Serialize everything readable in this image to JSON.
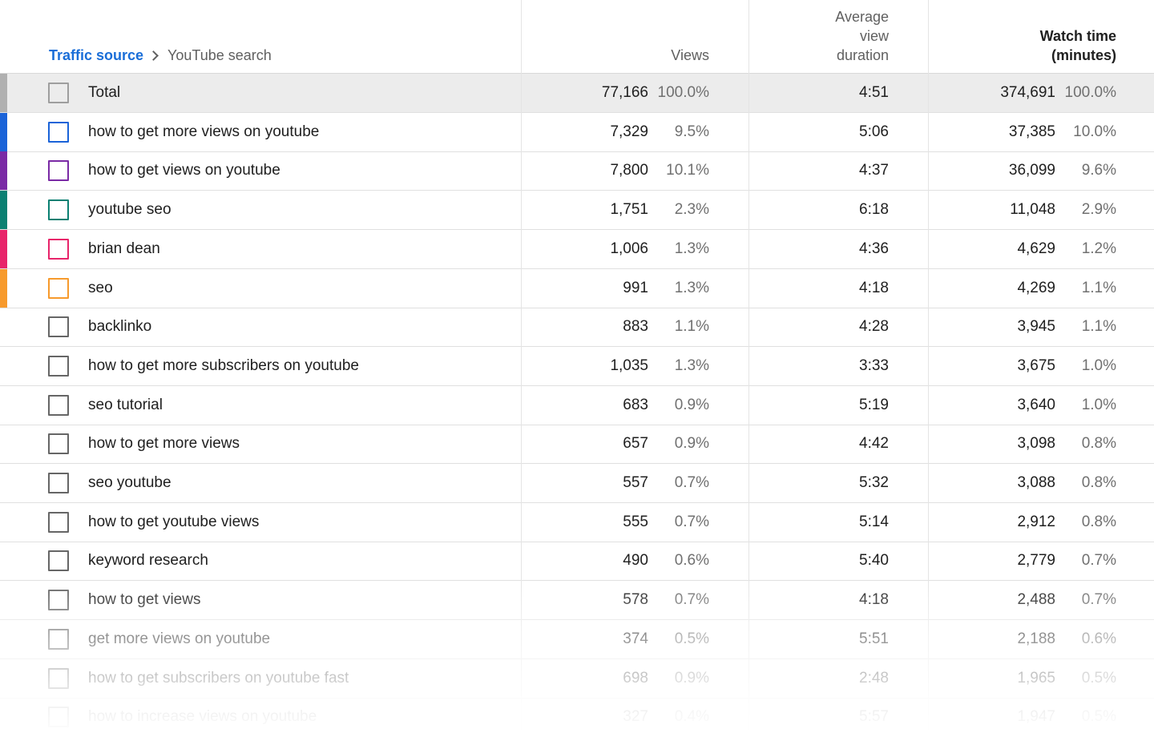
{
  "breadcrumb": {
    "link": "Traffic source",
    "current": "YouTube search"
  },
  "columns": {
    "views": "Views",
    "avg_view_duration": [
      "Average",
      "view",
      "duration"
    ],
    "watch_time": [
      "Watch time",
      "(minutes)"
    ]
  },
  "rows": [
    {
      "label": "Total",
      "views": "77,166",
      "views_pct": "100.0%",
      "avd": "4:51",
      "watch": "374,691",
      "watch_pct": "100.0%",
      "color": "#b0b0b0",
      "checkbox_color": "#9e9e9e",
      "total": true
    },
    {
      "label": "how to get more views on youtube",
      "views": "7,329",
      "views_pct": "9.5%",
      "avd": "5:06",
      "watch": "37,385",
      "watch_pct": "10.0%",
      "color": "#1a63d8"
    },
    {
      "label": "how to get views on youtube",
      "views": "7,800",
      "views_pct": "10.1%",
      "avd": "4:37",
      "watch": "36,099",
      "watch_pct": "9.6%",
      "color": "#7a2aa5"
    },
    {
      "label": "youtube seo",
      "views": "1,751",
      "views_pct": "2.3%",
      "avd": "6:18",
      "watch": "11,048",
      "watch_pct": "2.9%",
      "color": "#0b8072"
    },
    {
      "label": "brian dean",
      "views": "1,006",
      "views_pct": "1.3%",
      "avd": "4:36",
      "watch": "4,629",
      "watch_pct": "1.2%",
      "color": "#e8246a"
    },
    {
      "label": "seo",
      "views": "991",
      "views_pct": "1.3%",
      "avd": "4:18",
      "watch": "4,269",
      "watch_pct": "1.1%",
      "color": "#f79a2c"
    },
    {
      "label": "backlinko",
      "views": "883",
      "views_pct": "1.1%",
      "avd": "4:28",
      "watch": "3,945",
      "watch_pct": "1.1%"
    },
    {
      "label": "how to get more subscribers on youtube",
      "views": "1,035",
      "views_pct": "1.3%",
      "avd": "3:33",
      "watch": "3,675",
      "watch_pct": "1.0%"
    },
    {
      "label": "seo tutorial",
      "views": "683",
      "views_pct": "0.9%",
      "avd": "5:19",
      "watch": "3,640",
      "watch_pct": "1.0%"
    },
    {
      "label": "how to get more views",
      "views": "657",
      "views_pct": "0.9%",
      "avd": "4:42",
      "watch": "3,098",
      "watch_pct": "0.8%"
    },
    {
      "label": "seo youtube",
      "views": "557",
      "views_pct": "0.7%",
      "avd": "5:32",
      "watch": "3,088",
      "watch_pct": "0.8%"
    },
    {
      "label": "how to get youtube views",
      "views": "555",
      "views_pct": "0.7%",
      "avd": "5:14",
      "watch": "2,912",
      "watch_pct": "0.8%"
    },
    {
      "label": "keyword research",
      "views": "490",
      "views_pct": "0.6%",
      "avd": "5:40",
      "watch": "2,779",
      "watch_pct": "0.7%"
    },
    {
      "label": "how to get views",
      "views": "578",
      "views_pct": "0.7%",
      "avd": "4:18",
      "watch": "2,488",
      "watch_pct": "0.7%"
    },
    {
      "label": "get more views on youtube",
      "views": "374",
      "views_pct": "0.5%",
      "avd": "5:51",
      "watch": "2,188",
      "watch_pct": "0.6%"
    },
    {
      "label": "how to get subscribers on youtube fast",
      "views": "698",
      "views_pct": "0.9%",
      "avd": "2:48",
      "watch": "1,965",
      "watch_pct": "0.5%"
    },
    {
      "label": "how to increase views on youtube",
      "views": "327",
      "views_pct": "0.4%",
      "avd": "5:57",
      "watch": "1,947",
      "watch_pct": "0.5%"
    }
  ]
}
